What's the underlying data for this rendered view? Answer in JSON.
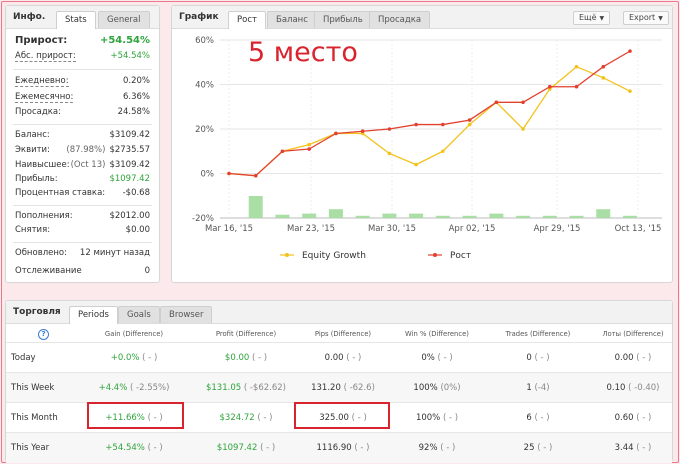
{
  "info": {
    "title": "Инфо.",
    "tabs": [
      "Stats",
      "General"
    ],
    "rows1": [
      {
        "label": "Прирост:",
        "value": "+54.54%"
      },
      {
        "label": "Абс. прирост:",
        "value": "+54.54%"
      }
    ],
    "rows2": [
      {
        "label": "Ежедневно:",
        "value": "0.20%"
      },
      {
        "label": "Ежемесячно:",
        "value": "6.36%"
      },
      {
        "label": "Просадка:",
        "value": "24.58%"
      }
    ],
    "rows3": [
      {
        "label": "Баланс:",
        "sub": "",
        "value": "$3109.42"
      },
      {
        "label": "Эквити:",
        "sub": "(87.98%)",
        "value": "$2735.57"
      },
      {
        "label": "Наивысшее:",
        "sub": "(Oct 13)",
        "value": "$3109.42"
      },
      {
        "label": "Прибыль:",
        "sub": "",
        "value": "$1097.42"
      },
      {
        "label": "Процентная ставка:",
        "sub": "",
        "value": "-$0.68"
      }
    ],
    "rows4": [
      {
        "label": "Пополнения:",
        "value": "$2012.00"
      },
      {
        "label": "Снятия:",
        "value": "$0.00"
      }
    ],
    "rows5": [
      {
        "label": "Обновлено:",
        "value": "12 минут назад"
      },
      {
        "label": "Отслеживание",
        "value": "0"
      }
    ]
  },
  "chart": {
    "title": "График",
    "tabs": [
      "Рост",
      "Баланс",
      "Прибыль",
      "Просадка"
    ],
    "buttons": [
      "Ещё",
      "Export"
    ],
    "annotation": "5 место"
  },
  "chart_data": {
    "type": "line",
    "x_ticks": [
      "Mar 16, '15",
      "Mar 23, '15",
      "Mar 30, '15",
      "Apr 02, '15",
      "Apr 29, '15",
      "Oct 13, '15"
    ],
    "y_ticks": [
      "60%",
      "40%",
      "20%",
      "0%",
      "-20%"
    ],
    "ylim": [
      -20,
      60
    ],
    "legend_position": "bottom",
    "series": [
      {
        "name": "Equity Growth",
        "color": "#f3c21b",
        "values": [
          0,
          -1,
          10,
          13,
          18,
          18,
          9,
          4,
          10,
          22,
          32,
          20,
          38,
          48,
          43,
          37
        ]
      },
      {
        "name": "Рост",
        "color": "#e3412f",
        "values": [
          0,
          -1,
          10,
          11,
          18,
          19,
          20,
          22,
          22,
          24,
          32,
          32,
          39,
          39,
          48,
          55
        ]
      }
    ],
    "bars": [
      0,
      10,
      1.5,
      2,
      4,
      1,
      2,
      2,
      1,
      1,
      2,
      1,
      1,
      1,
      4,
      1
    ]
  },
  "trading": {
    "title": "Торговля",
    "tabs": [
      "Periods",
      "Goals",
      "Browser"
    ],
    "help_icon": "?",
    "headers": [
      "Gain (Difference)",
      "Profit (Difference)",
      "Pips (Difference)",
      "Win % (Difference)",
      "Trades (Difference)",
      "Лоты (Difference)"
    ],
    "rows": [
      {
        "label": "Today",
        "cells": [
          [
            "+0.0%",
            "( - )"
          ],
          [
            "$0.00",
            "( - )"
          ],
          [
            "0.00",
            "( - )"
          ],
          [
            "0%",
            "( - )"
          ],
          [
            "0",
            "( - )"
          ],
          [
            "0.00",
            "( - )"
          ]
        ]
      },
      {
        "label": "This Week",
        "cells": [
          [
            "+4.4%",
            "( -2.55%)"
          ],
          [
            "$131.05",
            "( -$62.62)"
          ],
          [
            "131.20",
            "( -62.6)"
          ],
          [
            "100%",
            "(0%)"
          ],
          [
            "1",
            "(-4)"
          ],
          [
            "0.10",
            "( -0.40)"
          ]
        ]
      },
      {
        "label": "This Month",
        "cells": [
          [
            "+11.66%",
            "( - )"
          ],
          [
            "$324.72",
            "( - )"
          ],
          [
            "325.00",
            "( - )"
          ],
          [
            "100%",
            "( - )"
          ],
          [
            "6",
            "( - )"
          ],
          [
            "0.60",
            "( - )"
          ]
        ]
      },
      {
        "label": "This Year",
        "cells": [
          [
            "+54.54%",
            "( - )"
          ],
          [
            "$1097.42",
            "( - )"
          ],
          [
            "1116.90",
            "( - )"
          ],
          [
            "92%",
            "( - )"
          ],
          [
            "25",
            "( - )"
          ],
          [
            "3.44",
            "( - )"
          ]
        ]
      }
    ]
  },
  "colors": {
    "positive": "#2ea43a",
    "highlight": "#d9232e",
    "equity_line": "#f3c21b",
    "growth_line": "#e3412f",
    "bar": "#a9dfa4"
  }
}
